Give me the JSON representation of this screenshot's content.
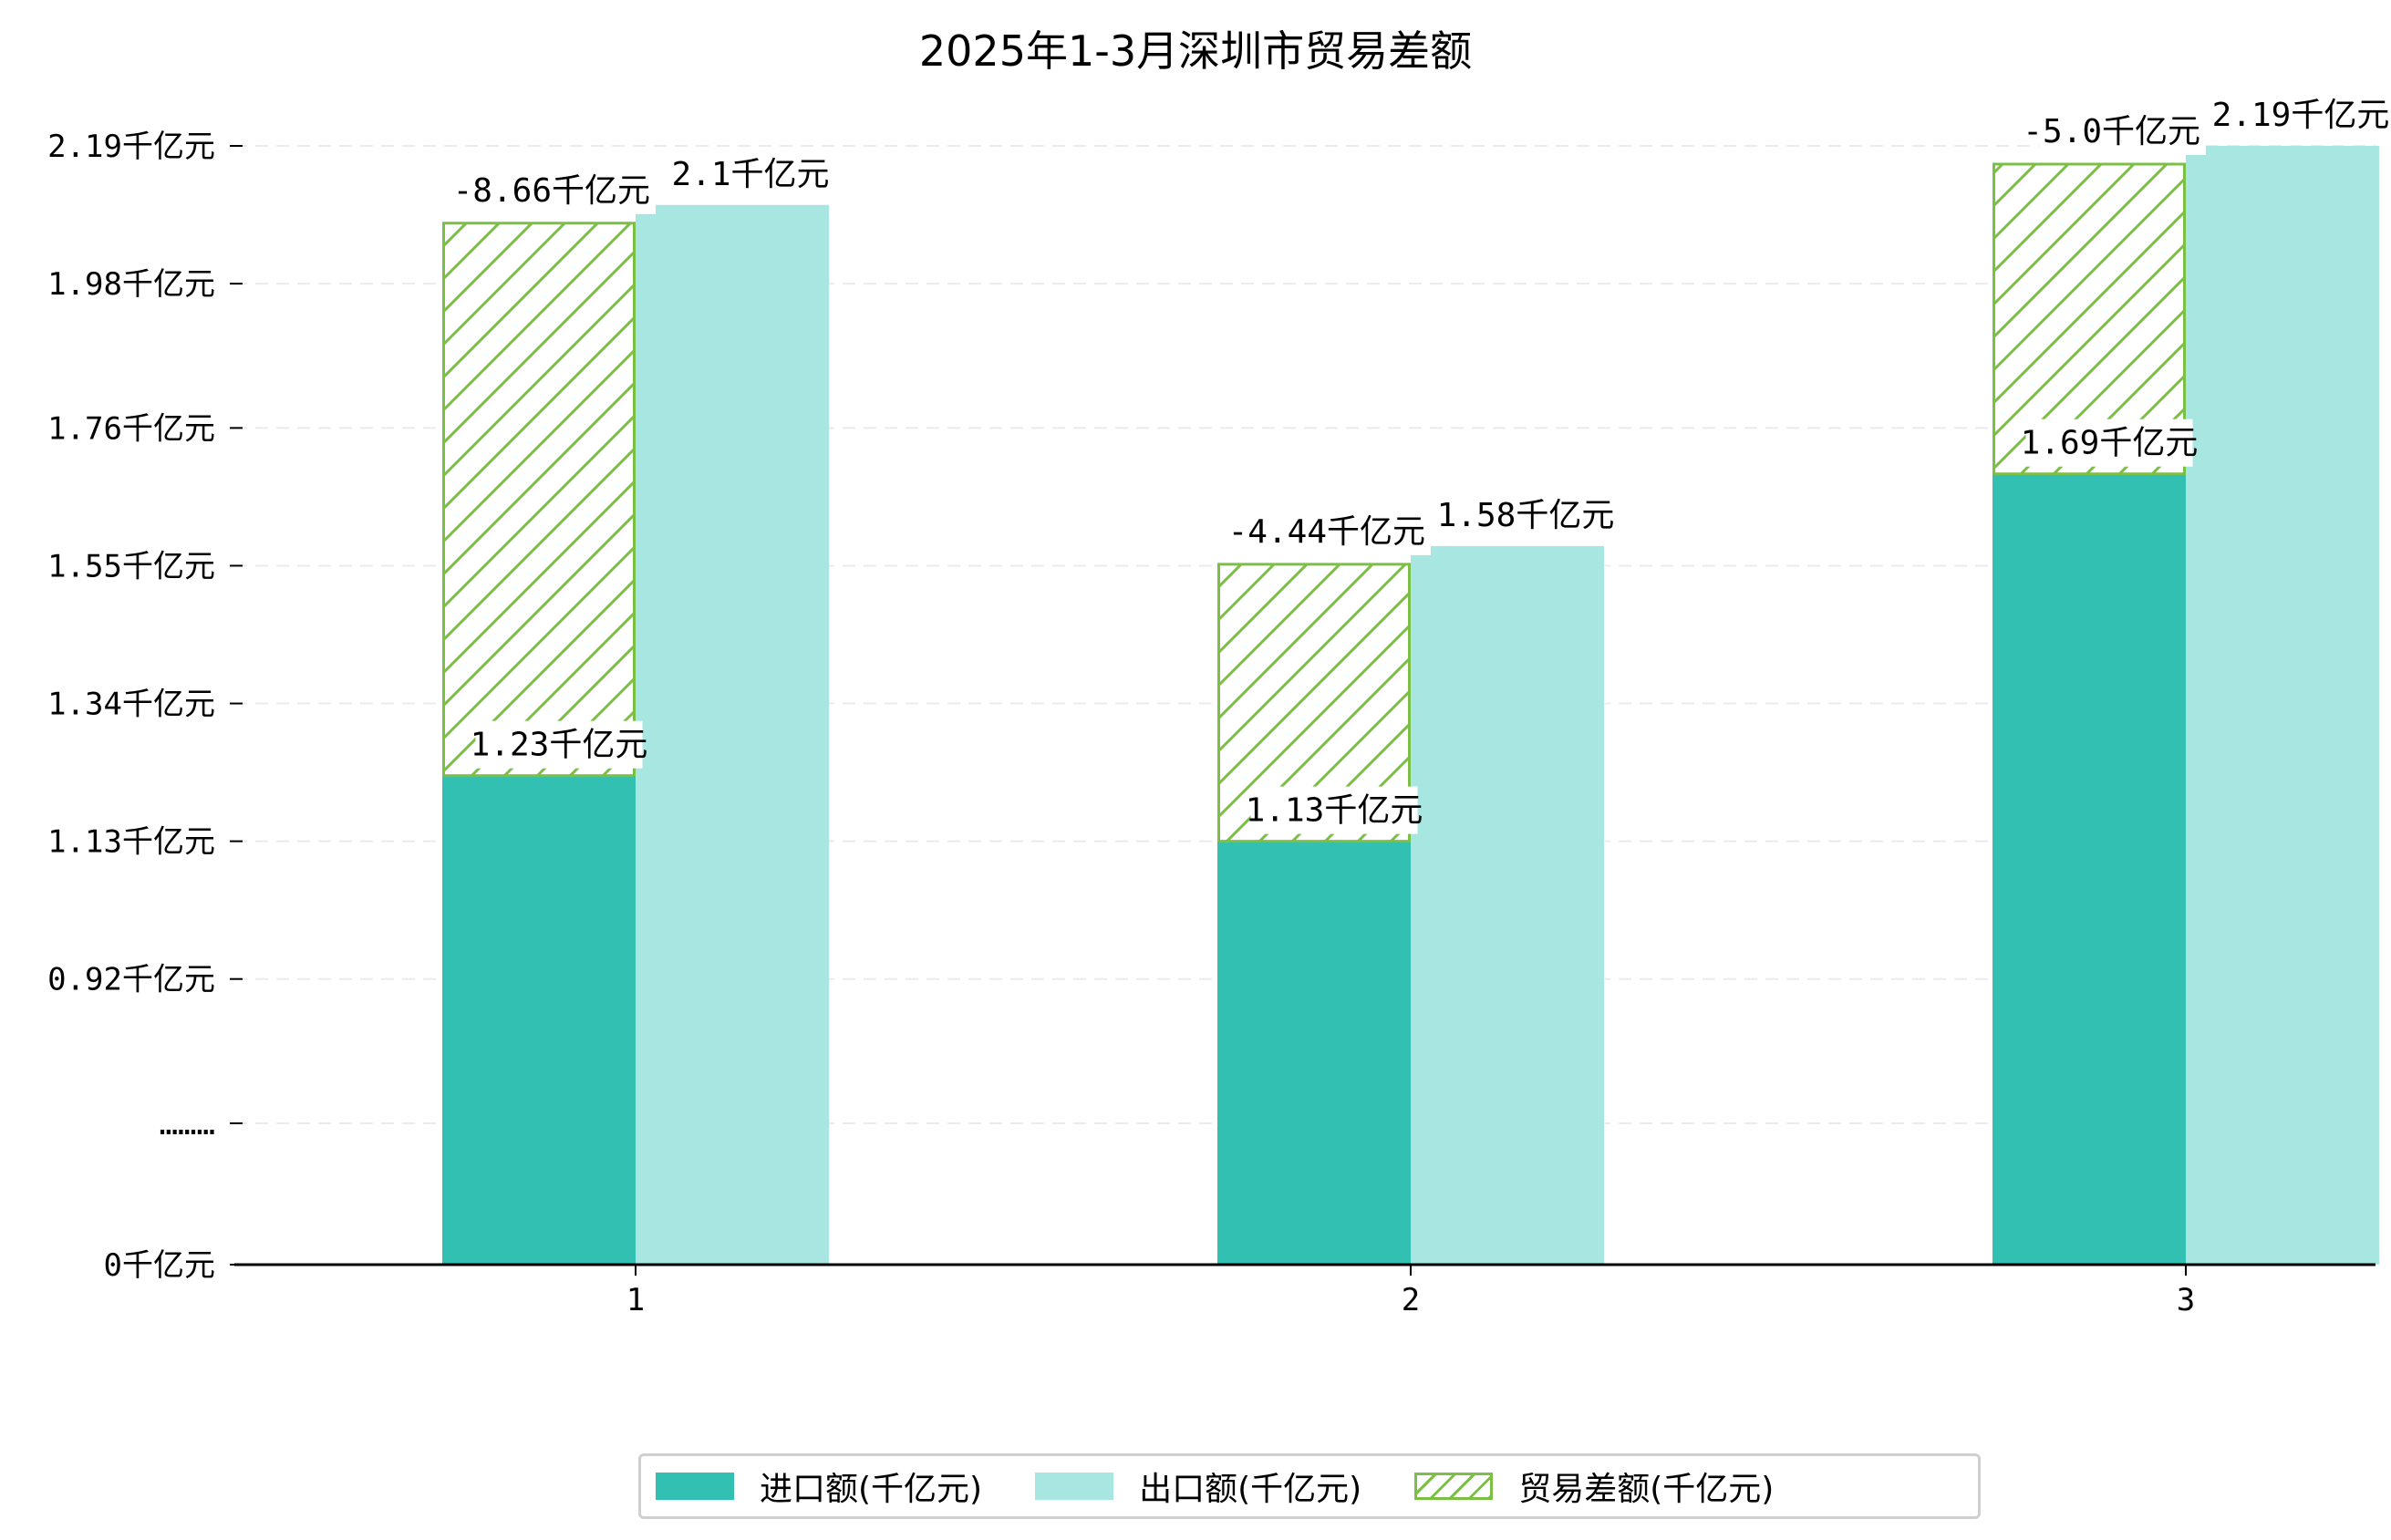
{
  "chart_data": {
    "type": "bar",
    "title": "2025年1-3月深圳市贸易差额",
    "categories": [
      "1",
      "2",
      "3"
    ],
    "series": [
      {
        "name": "进口额(千亿元)",
        "values": [
          1.23,
          1.13,
          1.69
        ],
        "color": "#32c0b3"
      },
      {
        "name": "出口额(千亿元)",
        "values": [
          2.1,
          1.58,
          2.19
        ],
        "color": "#a8e7e1"
      },
      {
        "name": "贸易差额(千亿元)",
        "values": [
          -8.66,
          -4.44,
          -5.0
        ],
        "color": "#7bbf45"
      }
    ],
    "data_labels": {
      "import": [
        "1.23千亿元",
        "1.13千亿元",
        "1.69千亿元"
      ],
      "export": [
        "2.1千亿元",
        "1.58千亿元",
        "2.19千亿元"
      ],
      "balance": [
        "-8.66千亿元",
        "-4.44千亿元",
        "-5.0千亿元"
      ]
    },
    "y_ticks": [
      {
        "value": 0,
        "label": "0千亿元"
      },
      {
        "value": 0.7,
        "label": "………"
      },
      {
        "value": 0.92,
        "label": "0.92千亿元"
      },
      {
        "value": 1.13,
        "label": "1.13千亿元"
      },
      {
        "value": 1.34,
        "label": "1.34千亿元"
      },
      {
        "value": 1.55,
        "label": "1.55千亿元"
      },
      {
        "value": 1.76,
        "label": "1.76千亿元"
      },
      {
        "value": 1.98,
        "label": "1.98千亿元"
      },
      {
        "value": 2.19,
        "label": "2.19千亿元"
      }
    ],
    "axis_break": {
      "from": 0,
      "to": 0.7
    },
    "ylim": [
      0,
      2.19
    ],
    "xlabel": "",
    "ylabel": "",
    "grid": true,
    "legend_position": "bottom-center"
  }
}
